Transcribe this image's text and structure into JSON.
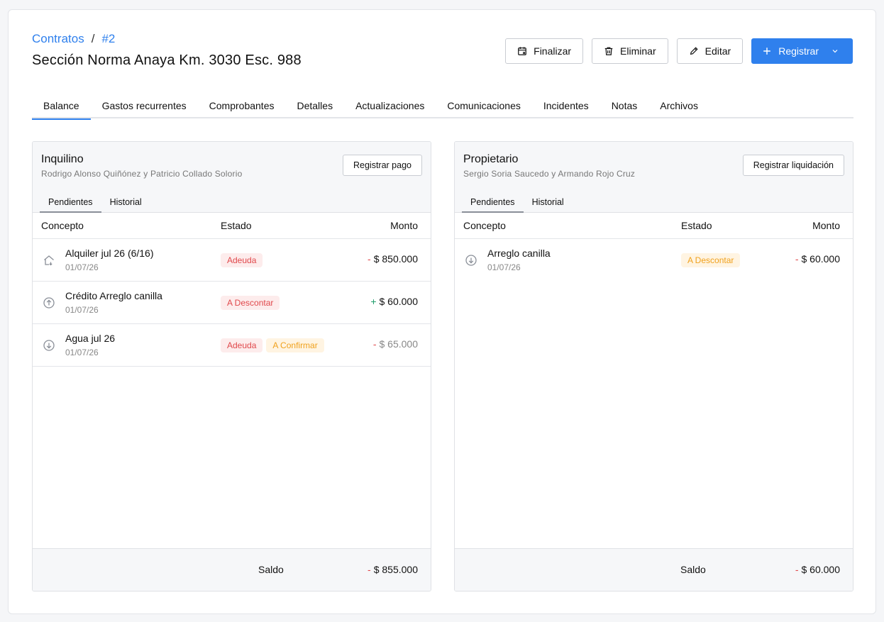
{
  "breadcrumb": {
    "parent": "Contratos",
    "separator": "/",
    "current": "#2"
  },
  "page_title": "Sección Norma Anaya Km. 3030 Esc. 988",
  "actions": {
    "finalizar": "Finalizar",
    "eliminar": "Eliminar",
    "editar": "Editar",
    "registrar": "Registrar"
  },
  "tabs": [
    {
      "label": "Balance",
      "active": true
    },
    {
      "label": "Gastos recurrentes"
    },
    {
      "label": "Comprobantes"
    },
    {
      "label": "Detalles"
    },
    {
      "label": "Actualizaciones"
    },
    {
      "label": "Comunicaciones"
    },
    {
      "label": "Incidentes"
    },
    {
      "label": "Notas"
    },
    {
      "label": "Archivos"
    }
  ],
  "tenant": {
    "title": "Inquilino",
    "subtitle": "Rodrigo Alonso Quiñónez y Patricio Collado Solorio",
    "button": "Registrar pago",
    "subtabs": [
      "Pendientes",
      "Historial"
    ],
    "columns": {
      "concept": "Concepto",
      "status": "Estado",
      "amount": "Monto"
    },
    "rows": [
      {
        "icon": "house-icon",
        "name": "Alquiler jul 26 (6/16)",
        "date": "01/07/26",
        "badges": [
          {
            "text": "Adeuda",
            "color": "red"
          }
        ],
        "sign": "-",
        "amount": "$ 850.000"
      },
      {
        "icon": "arrow-up-circle-icon",
        "name": "Crédito Arreglo canilla",
        "date": "01/07/26",
        "badges": [
          {
            "text": "A Descontar",
            "color": "red"
          }
        ],
        "sign": "+",
        "amount": "$ 60.000"
      },
      {
        "icon": "arrow-down-circle-icon",
        "name": "Agua jul 26",
        "date": "01/07/26",
        "badges": [
          {
            "text": "Adeuda",
            "color": "red"
          },
          {
            "text": "A Confirmar",
            "color": "orange"
          }
        ],
        "sign": "-",
        "amount": "$ 65.000"
      }
    ],
    "footer": {
      "label": "Saldo",
      "sign": "-",
      "amount": "$ 855.000"
    }
  },
  "owner": {
    "title": "Propietario",
    "subtitle": "Sergio Soria Saucedo y Armando Rojo Cruz",
    "button": "Registrar liquidación",
    "subtabs": [
      "Pendientes",
      "Historial"
    ],
    "columns": {
      "concept": "Concepto",
      "status": "Estado",
      "amount": "Monto"
    },
    "rows": [
      {
        "icon": "arrow-down-circle-icon",
        "name": "Arreglo canilla",
        "date": "01/07/26",
        "badges": [
          {
            "text": "A Descontar",
            "color": "orange"
          }
        ],
        "sign": "-",
        "amount": "$ 60.000"
      }
    ],
    "footer": {
      "label": "Saldo",
      "sign": "-",
      "amount": "$ 60.000"
    }
  }
}
